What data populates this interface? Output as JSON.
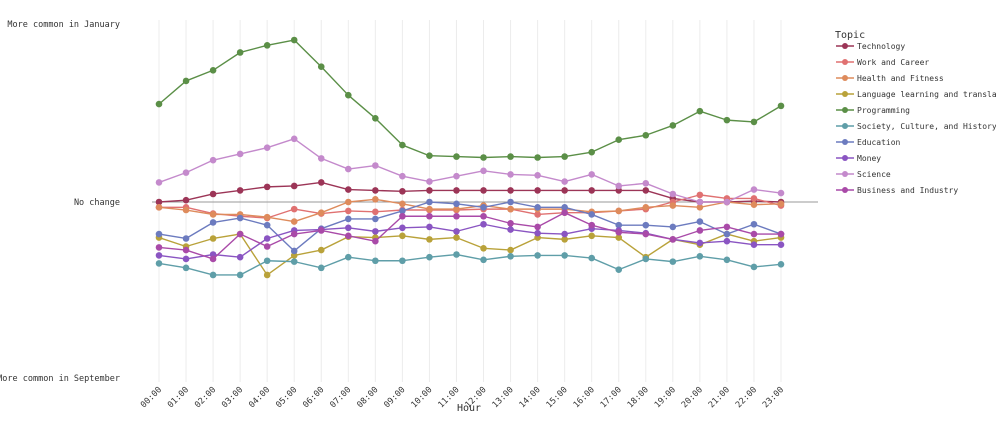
{
  "chart_data": {
    "type": "line",
    "y_labels": {
      "top": "More common in January",
      "middle": "No change",
      "bottom": "More common in September"
    },
    "xlabel": "Hour",
    "categories": [
      "00:00",
      "01:00",
      "02:00",
      "03:00",
      "04:00",
      "05:00",
      "06:00",
      "07:00",
      "08:00",
      "09:00",
      "10:00",
      "11:00",
      "12:00",
      "13:00",
      "14:00",
      "15:00",
      "16:00",
      "17:00",
      "18:00",
      "19:00",
      "20:00",
      "21:00",
      "22:00",
      "23:00"
    ],
    "ylim": [
      -1,
      1
    ],
    "legend_title": "Topic",
    "legend_position": "right",
    "grid": "vertical",
    "series": [
      {
        "name": "Technology",
        "color": "#9c3557",
        "values": [
          0.0,
          0.01,
          0.045,
          0.065,
          0.085,
          0.09,
          0.11,
          0.07,
          0.065,
          0.06,
          0.065,
          0.065,
          0.065,
          0.065,
          0.065,
          0.065,
          0.065,
          0.065,
          0.065,
          0.02,
          0.0,
          0.0,
          0.005,
          0.0
        ]
      },
      {
        "name": "Work and Career",
        "color": "#e07171",
        "values": [
          -0.03,
          -0.03,
          -0.065,
          -0.08,
          -0.09,
          -0.04,
          -0.065,
          -0.05,
          -0.055,
          -0.045,
          -0.045,
          -0.045,
          -0.04,
          -0.04,
          -0.07,
          -0.06,
          -0.06,
          -0.05,
          -0.04,
          0.0,
          0.04,
          0.02,
          0.02,
          -0.02
        ]
      },
      {
        "name": "Health and Fitness",
        "color": "#de8b5c",
        "values": [
          -0.03,
          -0.045,
          -0.07,
          -0.07,
          -0.085,
          -0.11,
          -0.06,
          0.0,
          0.015,
          -0.01,
          -0.04,
          -0.04,
          -0.02,
          -0.04,
          -0.04,
          -0.04,
          -0.055,
          -0.05,
          -0.03,
          -0.02,
          -0.03,
          0.0,
          -0.015,
          -0.01
        ]
      },
      {
        "name": "Language learning and translation",
        "color": "#b9a23a",
        "values": [
          -0.2,
          -0.25,
          -0.205,
          -0.18,
          -0.41,
          -0.3,
          -0.27,
          -0.195,
          -0.2,
          -0.19,
          -0.21,
          -0.2,
          -0.26,
          -0.27,
          -0.2,
          -0.21,
          -0.19,
          -0.2,
          -0.31,
          -0.21,
          -0.24,
          -0.18,
          -0.22,
          -0.2
        ]
      },
      {
        "name": "Programming",
        "color": "#5b8f47",
        "values": [
          0.55,
          0.68,
          0.74,
          0.84,
          0.88,
          0.91,
          0.76,
          0.6,
          0.47,
          0.32,
          0.26,
          0.255,
          0.25,
          0.255,
          0.25,
          0.255,
          0.28,
          0.35,
          0.375,
          0.43,
          0.51,
          0.46,
          0.45,
          0.54
        ]
      },
      {
        "name": "Society, Culture, and History",
        "color": "#5f9ea8",
        "values": [
          -0.345,
          -0.37,
          -0.41,
          -0.41,
          -0.33,
          -0.335,
          -0.37,
          -0.31,
          -0.33,
          -0.33,
          -0.31,
          -0.295,
          -0.325,
          -0.305,
          -0.3,
          -0.3,
          -0.315,
          -0.38,
          -0.32,
          -0.335,
          -0.305,
          -0.325,
          -0.365,
          -0.35
        ]
      },
      {
        "name": "Education",
        "color": "#6c7bbf",
        "values": [
          -0.18,
          -0.205,
          -0.115,
          -0.09,
          -0.13,
          -0.275,
          -0.15,
          -0.095,
          -0.095,
          -0.05,
          0.0,
          -0.01,
          -0.03,
          0.0,
          -0.03,
          -0.03,
          -0.07,
          -0.13,
          -0.13,
          -0.14,
          -0.11,
          -0.18,
          -0.125,
          -0.18
        ]
      },
      {
        "name": "Money",
        "color": "#8a55c2",
        "values": [
          -0.3,
          -0.32,
          -0.295,
          -0.31,
          -0.205,
          -0.16,
          -0.155,
          -0.145,
          -0.165,
          -0.145,
          -0.14,
          -0.165,
          -0.125,
          -0.155,
          -0.175,
          -0.18,
          -0.15,
          -0.16,
          -0.175,
          -0.21,
          -0.23,
          -0.22,
          -0.24,
          -0.24
        ]
      },
      {
        "name": "Science",
        "color": "#c48acc",
        "values": [
          0.11,
          0.165,
          0.235,
          0.27,
          0.305,
          0.355,
          0.245,
          0.185,
          0.205,
          0.145,
          0.115,
          0.145,
          0.175,
          0.155,
          0.15,
          0.115,
          0.155,
          0.09,
          0.105,
          0.045,
          0.0,
          0.0,
          0.07,
          0.05
        ]
      },
      {
        "name": "Business and Industry",
        "color": "#a94aa8",
        "values": [
          -0.255,
          -0.27,
          -0.32,
          -0.18,
          -0.25,
          -0.18,
          -0.16,
          -0.19,
          -0.22,
          -0.08,
          -0.08,
          -0.08,
          -0.08,
          -0.12,
          -0.14,
          -0.06,
          -0.13,
          -0.17,
          -0.18,
          -0.21,
          -0.16,
          -0.14,
          -0.18,
          -0.18
        ]
      }
    ]
  }
}
